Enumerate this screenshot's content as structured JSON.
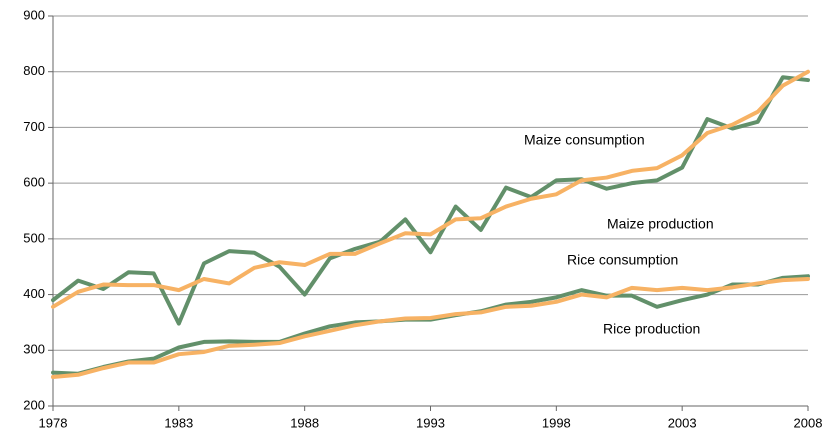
{
  "chart_data": {
    "type": "line",
    "x": [
      1978,
      1979,
      1980,
      1981,
      1982,
      1983,
      1984,
      1985,
      1986,
      1987,
      1988,
      1989,
      1990,
      1991,
      1992,
      1993,
      1994,
      1995,
      1996,
      1997,
      1998,
      1999,
      2000,
      2001,
      2002,
      2003,
      2004,
      2005,
      2006,
      2007,
      2008
    ],
    "xlim": [
      1978,
      2008
    ],
    "xticks": [
      1978,
      1983,
      1988,
      1993,
      1998,
      2003,
      2008
    ],
    "ylim": [
      200,
      900
    ],
    "yticks": [
      200,
      300,
      400,
      500,
      600,
      700,
      800,
      900
    ],
    "grid": true,
    "series": [
      {
        "name": "Maize production",
        "color": "#62906a",
        "values": [
          390,
          425,
          410,
          440,
          438,
          348,
          456,
          478,
          475,
          450,
          400,
          465,
          482,
          495,
          535,
          476,
          558,
          516,
          592,
          575,
          605,
          607,
          590,
          600,
          605,
          628,
          715,
          698,
          710,
          790,
          785
        ]
      },
      {
        "name": "Maize consumption",
        "color": "#f7b264",
        "values": [
          378,
          405,
          418,
          417,
          417,
          408,
          428,
          420,
          448,
          458,
          453,
          473,
          473,
          492,
          510,
          508,
          535,
          537,
          558,
          572,
          580,
          605,
          610,
          622,
          627,
          650,
          690,
          705,
          728,
          775,
          800
        ]
      },
      {
        "name": "Rice production",
        "color": "#62906a",
        "values": [
          260,
          258,
          270,
          280,
          285,
          305,
          315,
          316,
          315,
          315,
          330,
          343,
          350,
          352,
          355,
          355,
          363,
          370,
          382,
          387,
          395,
          408,
          398,
          398,
          378,
          390,
          400,
          418,
          418,
          430,
          433
        ]
      },
      {
        "name": "Rice consumption",
        "color": "#f7b264",
        "values": [
          252,
          256,
          268,
          278,
          278,
          293,
          297,
          308,
          310,
          313,
          325,
          335,
          345,
          352,
          357,
          358,
          365,
          368,
          378,
          380,
          387,
          400,
          395,
          412,
          408,
          412,
          408,
          413,
          420,
          426,
          428
        ]
      }
    ]
  }
}
